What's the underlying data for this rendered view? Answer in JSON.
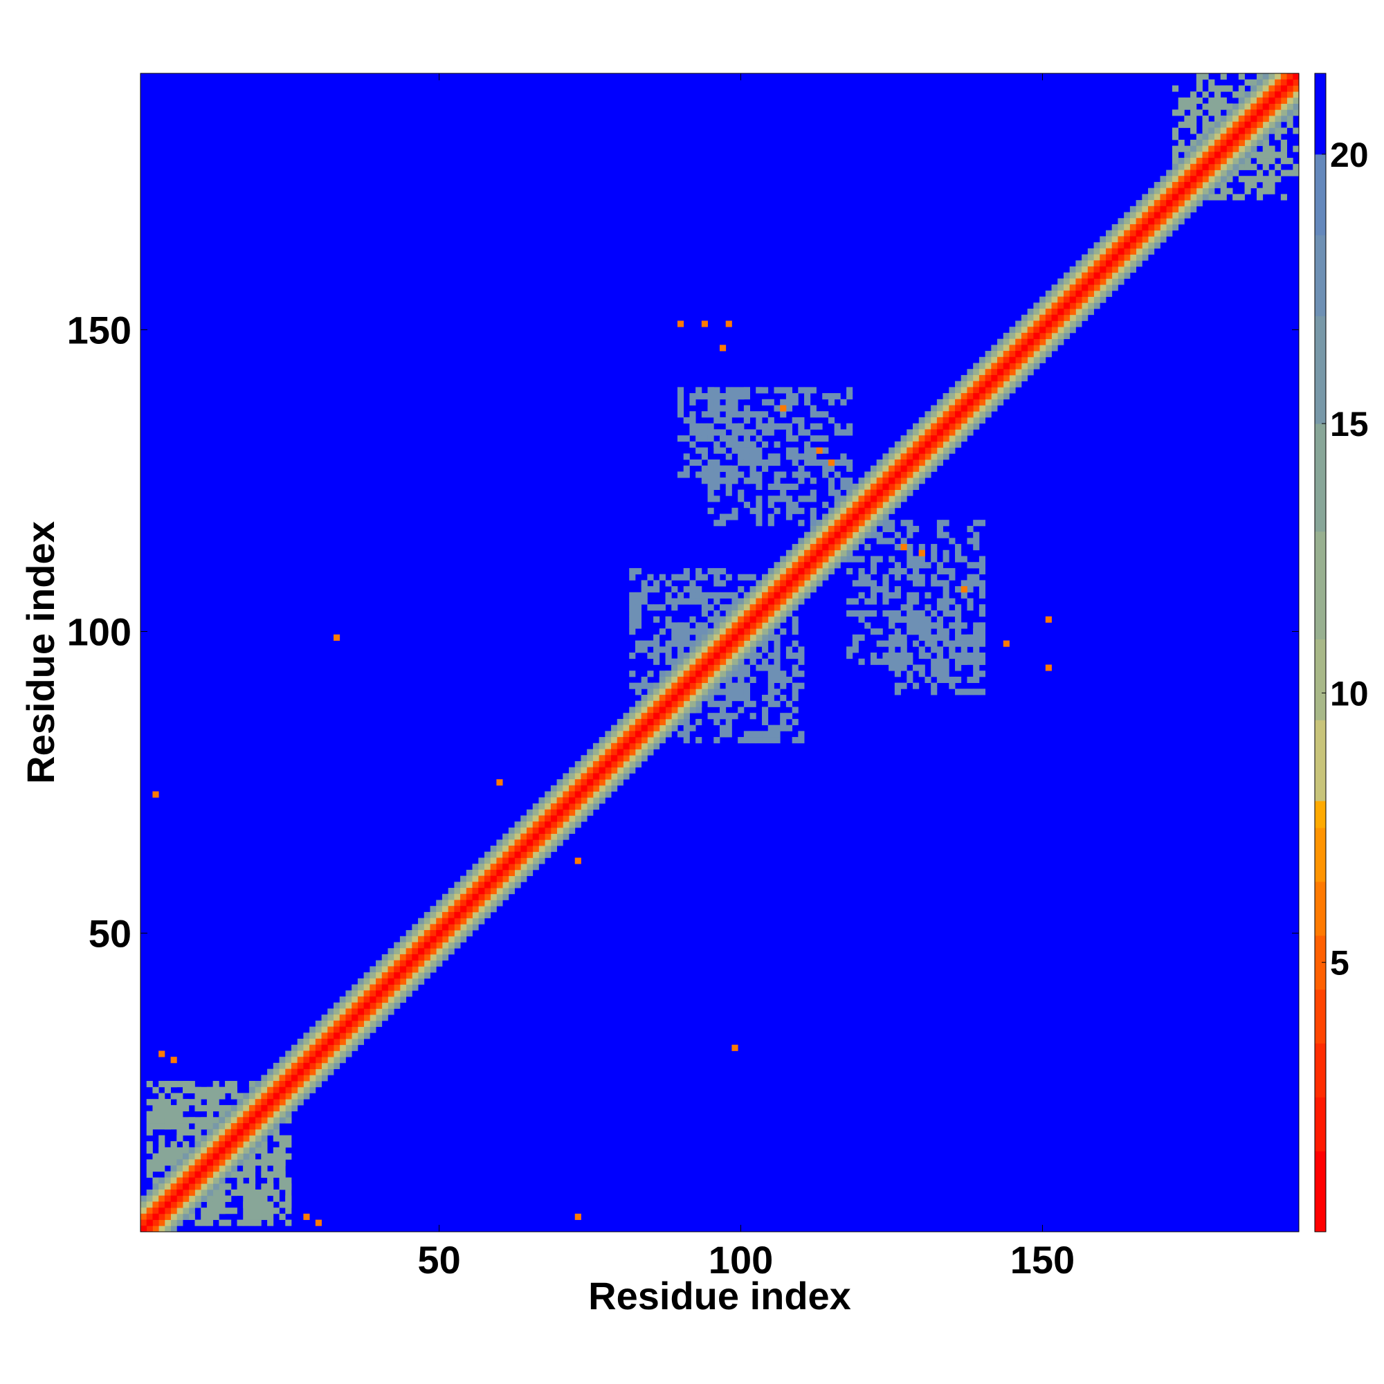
{
  "chart_data": {
    "type": "heatmap",
    "title": "",
    "xlabel": "Residue index",
    "ylabel": "Residue index",
    "xlim": [
      0.5,
      192.5
    ],
    "ylim": [
      0.5,
      192.5
    ],
    "n_residues": 192,
    "xticks": [
      50,
      100,
      150
    ],
    "yticks": [
      50,
      100,
      150
    ],
    "colorbar": {
      "range": [
        0,
        21.5
      ],
      "ticks": [
        5,
        10,
        15,
        20
      ],
      "bands": [
        {
          "from": 0.0,
          "to": 1.5,
          "color": "#ff0000"
        },
        {
          "from": 1.5,
          "to": 2.5,
          "color": "#ff1a00"
        },
        {
          "from": 2.5,
          "to": 3.5,
          "color": "#ff2d00"
        },
        {
          "from": 3.5,
          "to": 4.5,
          "color": "#ff4500"
        },
        {
          "from": 4.5,
          "to": 5.5,
          "color": "#ff6000"
        },
        {
          "from": 5.5,
          "to": 6.5,
          "color": "#ff7a00"
        },
        {
          "from": 6.5,
          "to": 7.5,
          "color": "#ff9400"
        },
        {
          "from": 7.5,
          "to": 8.0,
          "color": "#ffaa00"
        },
        {
          "from": 8.0,
          "to": 9.5,
          "color": "#c8c47a"
        },
        {
          "from": 9.5,
          "to": 11.0,
          "color": "#a8b888"
        },
        {
          "from": 11.0,
          "to": 13.0,
          "color": "#98b090"
        },
        {
          "from": 13.0,
          "to": 15.0,
          "color": "#88a698"
        },
        {
          "from": 15.0,
          "to": 17.0,
          "color": "#7898a8"
        },
        {
          "from": 17.0,
          "to": 18.5,
          "color": "#6e90b4"
        },
        {
          "from": 18.5,
          "to": 20.0,
          "color": "#6488bc"
        },
        {
          "from": 20.0,
          "to": 21.5,
          "color": "#0000ff"
        }
      ]
    },
    "value_colors": {
      "near": "#ff0000",
      "mid": "#ff8c00",
      "band": "#a8b888",
      "far": "#6e90b4",
      "background": "#0000ff"
    },
    "description_values": {
      "diagonal": [
        {
          "offset": 0,
          "value": 1
        },
        {
          "offset": 1,
          "value": 3
        },
        {
          "offset": 2,
          "value": 5
        },
        {
          "offset": 3,
          "value": 9
        },
        {
          "offset": 4,
          "value": 12
        },
        {
          "offset": 5,
          "value": 16
        }
      ],
      "blocks": [
        {
          "x": [
            88,
            110
          ],
          "y": [
            82,
            102
          ],
          "value": 18
        },
        {
          "x": [
            95,
            118
          ],
          "y": [
            118,
            140
          ],
          "value": 18
        },
        {
          "x": [
            125,
            140
          ],
          "y": [
            90,
            103
          ],
          "value": 18
        },
        {
          "x": [
            2,
            25
          ],
          "y": [
            3,
            25
          ],
          "value": 14
        },
        {
          "x": [
            175,
            190
          ],
          "y": [
            172,
            192
          ],
          "value": 14
        }
      ],
      "isolated_contacts": [
        {
          "x": 3,
          "y": 73,
          "value": 6
        },
        {
          "x": 4,
          "y": 30,
          "value": 6
        },
        {
          "x": 6,
          "y": 29,
          "value": 6
        },
        {
          "x": 28,
          "y": 3,
          "value": 6
        },
        {
          "x": 30,
          "y": 2,
          "value": 6
        },
        {
          "x": 73,
          "y": 3,
          "value": 6
        },
        {
          "x": 60,
          "y": 75,
          "value": 6
        },
        {
          "x": 73,
          "y": 62,
          "value": 6
        },
        {
          "x": 90,
          "y": 151,
          "value": 6
        },
        {
          "x": 94,
          "y": 151,
          "value": 6
        },
        {
          "x": 98,
          "y": 151,
          "value": 6
        },
        {
          "x": 97,
          "y": 147,
          "value": 6
        },
        {
          "x": 107,
          "y": 137,
          "value": 6
        },
        {
          "x": 113,
          "y": 130,
          "value": 6
        },
        {
          "x": 115,
          "y": 128,
          "value": 6
        },
        {
          "x": 127,
          "y": 114,
          "value": 6
        },
        {
          "x": 130,
          "y": 113,
          "value": 6
        },
        {
          "x": 137,
          "y": 107,
          "value": 6
        },
        {
          "x": 144,
          "y": 98,
          "value": 6
        },
        {
          "x": 151,
          "y": 102,
          "value": 6
        },
        {
          "x": 151,
          "y": 94,
          "value": 6
        },
        {
          "x": 99,
          "y": 31,
          "value": 6
        },
        {
          "x": 33,
          "y": 99,
          "value": 6
        }
      ]
    }
  }
}
